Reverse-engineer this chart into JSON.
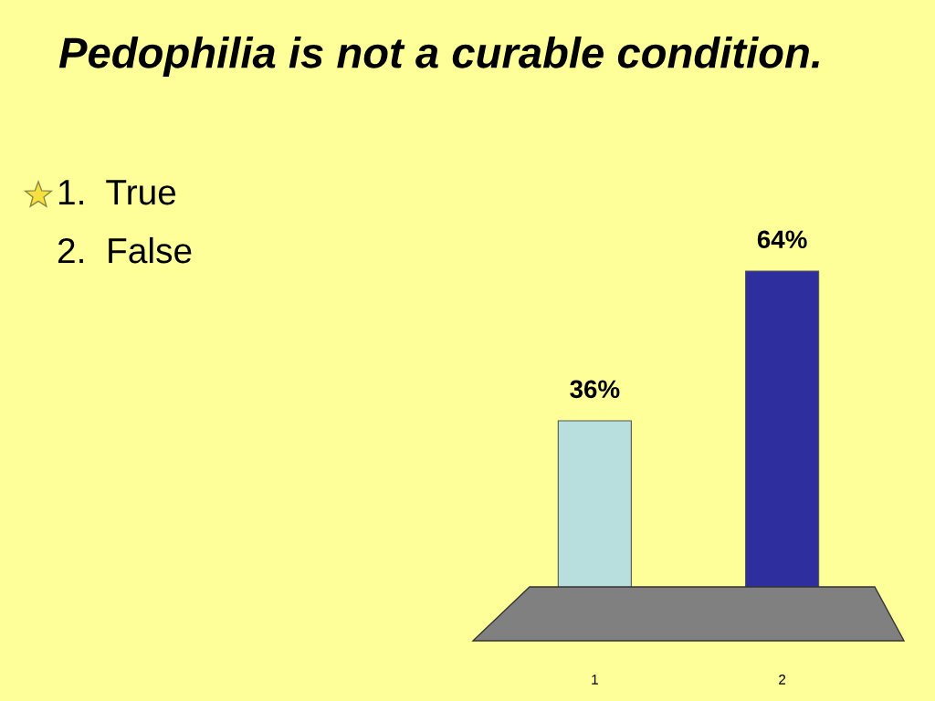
{
  "chart_data": {
    "type": "bar",
    "title": "Pedophilia is not a curable condition.",
    "annotations": [
      "1.  True",
      "2.  False"
    ],
    "categories": [
      "1",
      "2"
    ],
    "values": [
      36,
      64
    ],
    "colors": [
      "#b8dede",
      "#2e2e9e"
    ],
    "value_labels": [
      "36%",
      "64%"
    ],
    "grid": false,
    "legend": false
  }
}
